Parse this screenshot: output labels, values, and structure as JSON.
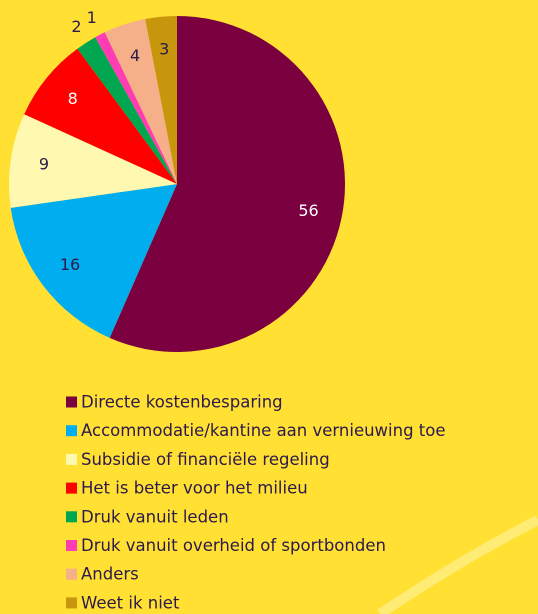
{
  "chart_data": {
    "type": "pie",
    "categories": [
      "Directe kostenbesparing",
      "Accommodatie/kantine aan vernieuwing toe",
      "Subsidie of financiële regeling",
      "Het is beter voor het milieu",
      "Druk vanuit leden",
      "Druk vanuit overheid of sportbonden",
      "Anders",
      "Weet ik niet"
    ],
    "values": [
      56,
      16,
      9,
      8,
      2,
      1,
      4,
      3
    ],
    "colors": [
      "#7a0040",
      "#00aeef",
      "#fff8b0",
      "#ff0000",
      "#00a650",
      "#ff3cb4",
      "#f5b08a",
      "#c8960c"
    ],
    "legend": "bottom"
  }
}
